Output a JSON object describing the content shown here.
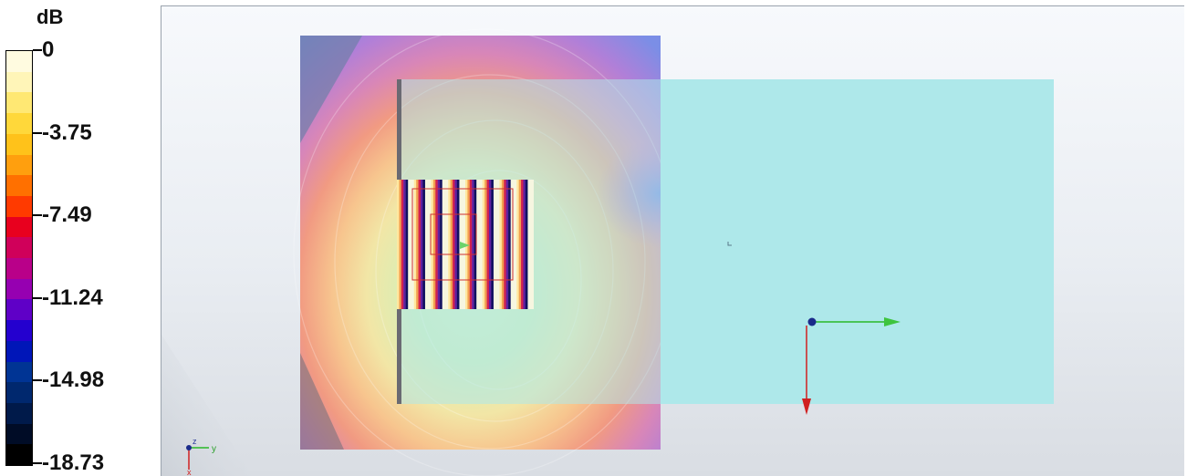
{
  "legend": {
    "unit": "dB",
    "labels": [
      "0",
      "-3.75",
      "-7.49",
      "-11.24",
      "-14.98",
      "-18.73"
    ],
    "bands": [
      "#fffbe0",
      "#fff5b8",
      "#ffe873",
      "#ffd83a",
      "#ffc21a",
      "#ff9f0e",
      "#ff7000",
      "#ff3a00",
      "#e8001e",
      "#d0005a",
      "#b90089",
      "#9600b1",
      "#5f00c7",
      "#2400cf",
      "#0016b8",
      "#003494",
      "#00286e",
      "#001a4a",
      "#000c26",
      "#000000"
    ]
  },
  "scene": {
    "field_plane_colors": {
      "hot": "#cfeeb8",
      "warm": "#f6e7a3",
      "mid": "#f2a07a",
      "cool": "#c981d4",
      "cold": "#6b8fe6"
    },
    "ground_plane_color": "#aee8ea",
    "axis_y_label": "y",
    "axis_z_label": "z",
    "axis_x_label": "x"
  }
}
